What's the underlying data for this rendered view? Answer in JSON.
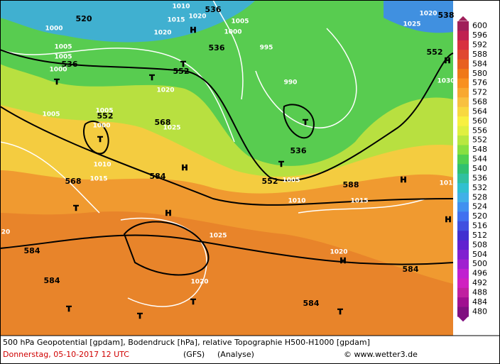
{
  "map_labels": [
    "536",
    "520",
    "536",
    "536",
    "552",
    "552",
    "568",
    "552",
    "538",
    "536",
    "552",
    "568",
    "584",
    "588",
    "584",
    "584",
    "584",
    "584",
    "1010",
    "1015",
    "1020",
    "1020",
    "1000",
    "1005",
    "1005",
    "1000",
    "1005",
    "1000",
    "995",
    "990",
    "1020",
    "1005",
    "1005",
    "1000",
    "1025",
    "1010",
    "1015",
    "1025",
    "1020",
    "1010",
    "1015",
    "1005",
    "1020",
    "1025",
    "1020",
    "1030",
    "20",
    "101",
    "H",
    "T",
    "T",
    "T",
    "T",
    "T",
    "H",
    "T",
    "H",
    "T",
    "H",
    "H",
    "H",
    "T",
    "T",
    "T",
    "T",
    "H"
  ],
  "colorbar": {
    "values": [
      600,
      596,
      592,
      588,
      584,
      580,
      576,
      572,
      568,
      564,
      560,
      556,
      552,
      548,
      544,
      540,
      536,
      532,
      528,
      524,
      520,
      516,
      512,
      508,
      504,
      500,
      496,
      492,
      488,
      484,
      480
    ],
    "colors": [
      "#a0205a",
      "#c02050",
      "#d83040",
      "#e04830",
      "#e86020",
      "#f07818",
      "#f89020",
      "#f8a830",
      "#f8c040",
      "#f8d840",
      "#f8f040",
      "#e0f040",
      "#b8e840",
      "#88e040",
      "#50d050",
      "#30c070",
      "#30c0a0",
      "#30c0d0",
      "#40b0e8",
      "#4090f0",
      "#4070f0",
      "#4050e0",
      "#4030d0",
      "#6020d0",
      "#8020d0",
      "#a020d0",
      "#c020d0",
      "#d020c0",
      "#c020a0",
      "#a01090",
      "#801080"
    ]
  },
  "footer": {
    "description": "500 hPa Geopotential [gpdam], Bodendruck [hPa], relative Topographie H500-H1000 [gpdam]",
    "date": "Donnerstag, 05-10-2017  12 UTC",
    "model": "(GFS)",
    "run": "(Analyse)",
    "credit": "© www.wetter3.de"
  }
}
